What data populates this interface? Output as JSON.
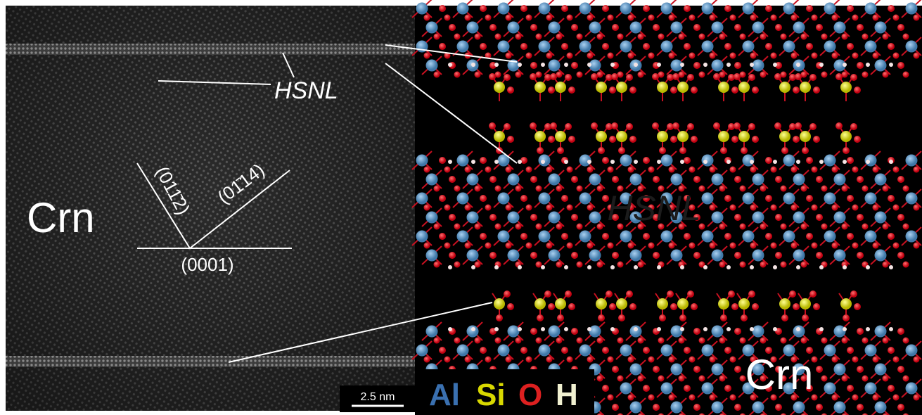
{
  "left_panel": {
    "hsnl_label": "HSNL",
    "crn_label": "Crn",
    "plane_0001": "(0001)",
    "plane_0112": "(011̄2)",
    "plane_0114": "(01̄14)",
    "scale_bar": "2.5 nm"
  },
  "right_panel": {
    "hsnl_label": "HSNL",
    "crn_label": "Crn",
    "legend": [
      "Al",
      "Si",
      "O",
      "H"
    ]
  }
}
